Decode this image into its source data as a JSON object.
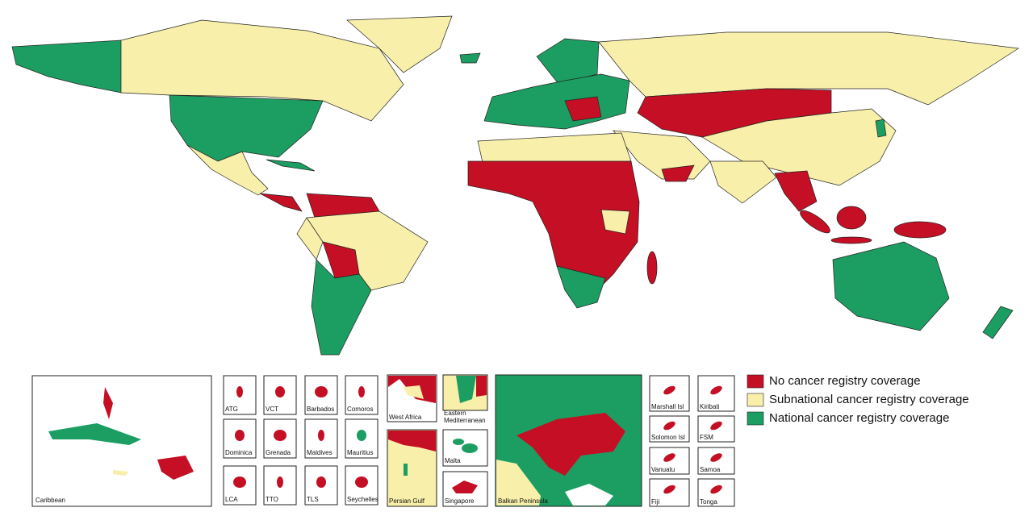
{
  "legend": {
    "items": [
      {
        "label": "No cancer registry coverage",
        "color": "#c50f24"
      },
      {
        "label": "Subnational cancer registry coverage",
        "color": "#f8efaa"
      },
      {
        "label": "National cancer registry coverage",
        "color": "#1c9e62"
      }
    ]
  },
  "insets": [
    {
      "label": "Caribbean"
    },
    {
      "label": "ATG"
    },
    {
      "label": "VCT"
    },
    {
      "label": "Barbados"
    },
    {
      "label": "Comoros"
    },
    {
      "label": "Dominica"
    },
    {
      "label": "Grenada"
    },
    {
      "label": "Maldives"
    },
    {
      "label": "Mauritius"
    },
    {
      "label": "LCA"
    },
    {
      "label": "TTO"
    },
    {
      "label": "TLS"
    },
    {
      "label": "Seychelles"
    },
    {
      "label": "West Africa"
    },
    {
      "label": "Persian Gulf"
    },
    {
      "label": "Eastern Mediterranean"
    },
    {
      "label": "Malta"
    },
    {
      "label": "Singapore"
    },
    {
      "label": "Balkan Peninsula"
    },
    {
      "label": "Marshall Isl"
    },
    {
      "label": "Kiribati"
    },
    {
      "label": "Solomon Isl"
    },
    {
      "label": "FSM"
    },
    {
      "label": "Vanuatu"
    },
    {
      "label": "Samoa"
    },
    {
      "label": "Fiji"
    },
    {
      "label": "Tonga"
    }
  ]
}
